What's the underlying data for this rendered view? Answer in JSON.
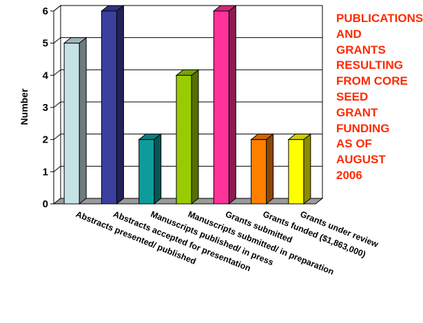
{
  "chart_data": {
    "type": "bar",
    "title": "PUBLICATIONS AND GRANTS RESULTING FROM CORE SEED GRANT FUNDING AS OF AUGUST 2006",
    "title_lines": [
      "PUBLICATIONS AND",
      "GRANTS",
      "RESULTING",
      "FROM CORE",
      "SEED GRANT",
      "FUNDING",
      "AS OF AUGUST",
      "2006"
    ],
    "ylabel": "Number",
    "xlabel": "",
    "ylim": [
      0,
      6
    ],
    "yticks": [
      "0",
      "1",
      "2",
      "3",
      "4",
      "5",
      "6"
    ],
    "grid": true,
    "legend": "none",
    "categories": [
      "Abstracts presented/ published",
      "Abstracts accepted for presentation",
      "Manuscripts published/ in press",
      "Manuscripts submitted/ in preparation",
      "Grants submitted",
      "Grants funded ($1,863,000)",
      "Grants under review"
    ],
    "values": [
      5,
      6,
      2,
      4,
      6,
      2,
      2
    ],
    "colors": [
      "#c6e2e6",
      "#3b3f9e",
      "#0d9c9c",
      "#99cc00",
      "#ff3399",
      "#ff7f00",
      "#ffff00"
    ]
  }
}
